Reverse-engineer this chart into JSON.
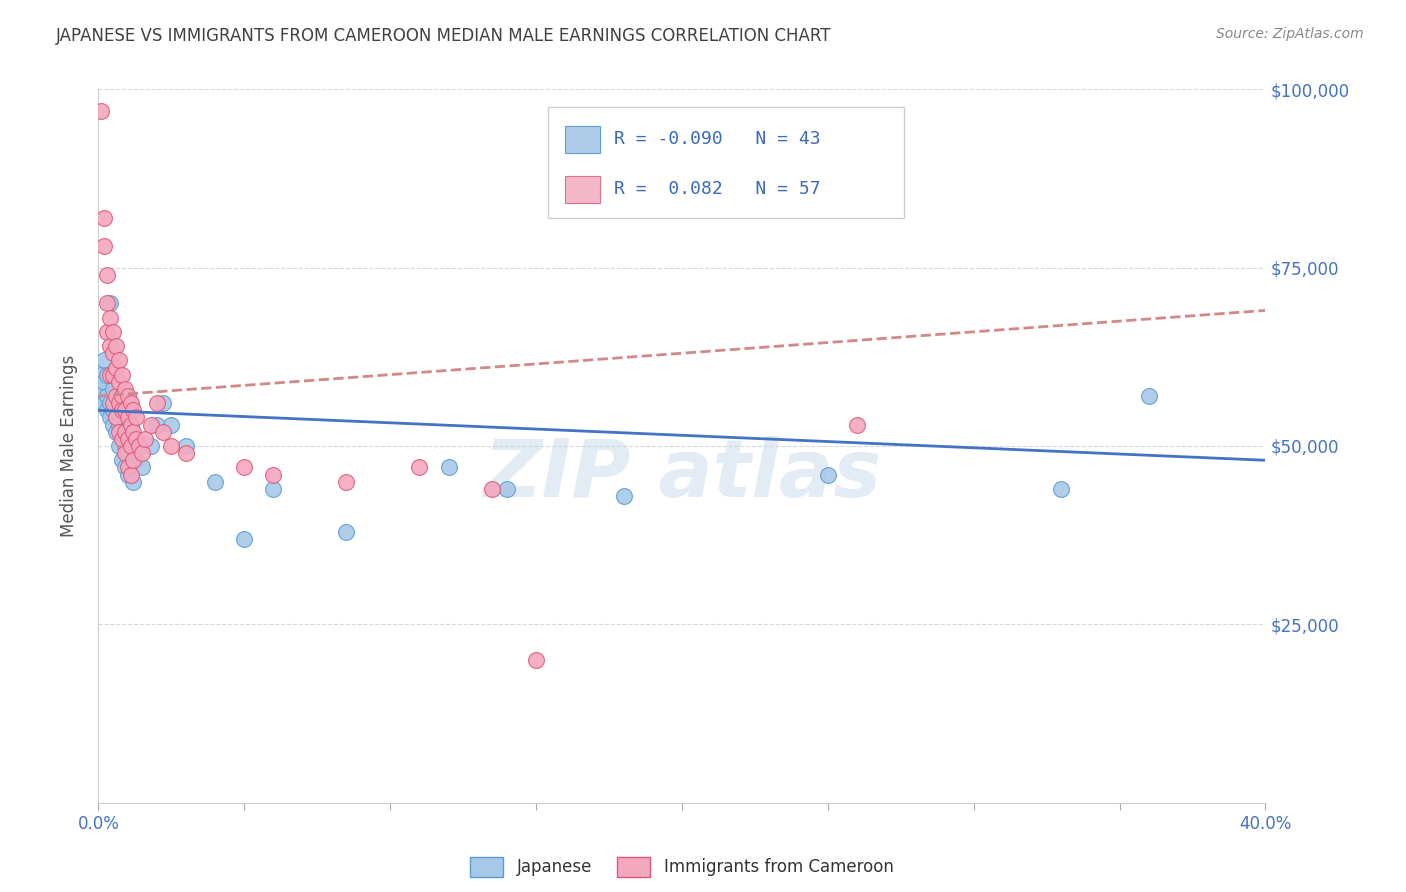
{
  "title": "JAPANESE VS IMMIGRANTS FROM CAMEROON MEDIAN MALE EARNINGS CORRELATION CHART",
  "source_text": "Source: ZipAtlas.com",
  "ylabel": "Median Male Earnings",
  "xlim": [
    0.0,
    0.4
  ],
  "ylim": [
    0,
    100000
  ],
  "yticks": [
    0,
    25000,
    50000,
    75000,
    100000
  ],
  "ytick_labels_right": [
    "",
    "$25,000",
    "$50,000",
    "$75,000",
    "$100,000"
  ],
  "xticks": [
    0.0,
    0.05,
    0.1,
    0.15,
    0.2,
    0.25,
    0.3,
    0.35,
    0.4
  ],
  "xtick_labels": [
    "0.0%",
    "",
    "",
    "",
    "",
    "",
    "",
    "",
    "40.0%"
  ],
  "legend_entries": [
    {
      "label": "R = -0.090   N = 43",
      "color": "#aecce8",
      "edge_color": "#5b9bd5"
    },
    {
      "label": "R =  0.082   N = 57",
      "color": "#f4b8c8",
      "edge_color": "#e07090"
    }
  ],
  "series": [
    {
      "name": "Japanese",
      "color": "#a8c8e8",
      "edge_color": "#5b9bd5",
      "points": [
        [
          0.001,
          57000
        ],
        [
          0.001,
          58000
        ],
        [
          0.001,
          60000
        ],
        [
          0.002,
          56000
        ],
        [
          0.002,
          59000
        ],
        [
          0.002,
          62000
        ],
        [
          0.003,
          55000
        ],
        [
          0.003,
          57000
        ],
        [
          0.003,
          60000
        ],
        [
          0.004,
          54000
        ],
        [
          0.004,
          56000
        ],
        [
          0.004,
          70000
        ],
        [
          0.005,
          53000
        ],
        [
          0.005,
          55000
        ],
        [
          0.005,
          58000
        ],
        [
          0.006,
          52000
        ],
        [
          0.006,
          54000
        ],
        [
          0.007,
          50000
        ],
        [
          0.007,
          53000
        ],
        [
          0.008,
          48000
        ],
        [
          0.008,
          52000
        ],
        [
          0.009,
          47000
        ],
        [
          0.009,
          50000
        ],
        [
          0.01,
          46000
        ],
        [
          0.01,
          49000
        ],
        [
          0.012,
          45000
        ],
        [
          0.013,
          48000
        ],
        [
          0.015,
          47000
        ],
        [
          0.018,
          50000
        ],
        [
          0.02,
          53000
        ],
        [
          0.022,
          56000
        ],
        [
          0.025,
          53000
        ],
        [
          0.03,
          50000
        ],
        [
          0.04,
          45000
        ],
        [
          0.05,
          37000
        ],
        [
          0.06,
          44000
        ],
        [
          0.085,
          38000
        ],
        [
          0.12,
          47000
        ],
        [
          0.14,
          44000
        ],
        [
          0.18,
          43000
        ],
        [
          0.25,
          46000
        ],
        [
          0.33,
          44000
        ],
        [
          0.36,
          57000
        ]
      ],
      "trend_color": "#4472c4",
      "trend_linestyle": "-",
      "trend_x0": 0.0,
      "trend_y0": 55000,
      "trend_x1": 0.4,
      "trend_y1": 48000
    },
    {
      "name": "Immigrants from Cameroon",
      "color": "#f4a8c0",
      "edge_color": "#e05878",
      "points": [
        [
          0.001,
          97000
        ],
        [
          0.002,
          82000
        ],
        [
          0.002,
          78000
        ],
        [
          0.003,
          74000
        ],
        [
          0.003,
          70000
        ],
        [
          0.003,
          66000
        ],
        [
          0.004,
          68000
        ],
        [
          0.004,
          64000
        ],
        [
          0.004,
          60000
        ],
        [
          0.005,
          66000
        ],
        [
          0.005,
          63000
        ],
        [
          0.005,
          60000
        ],
        [
          0.005,
          56000
        ],
        [
          0.006,
          64000
        ],
        [
          0.006,
          61000
        ],
        [
          0.006,
          57000
        ],
        [
          0.006,
          54000
        ],
        [
          0.007,
          62000
        ],
        [
          0.007,
          59000
        ],
        [
          0.007,
          56000
        ],
        [
          0.007,
          52000
        ],
        [
          0.008,
          60000
        ],
        [
          0.008,
          57000
        ],
        [
          0.008,
          55000
        ],
        [
          0.008,
          51000
        ],
        [
          0.009,
          58000
        ],
        [
          0.009,
          55000
        ],
        [
          0.009,
          52000
        ],
        [
          0.009,
          49000
        ],
        [
          0.01,
          57000
        ],
        [
          0.01,
          54000
        ],
        [
          0.01,
          51000
        ],
        [
          0.01,
          47000
        ],
        [
          0.011,
          56000
        ],
        [
          0.011,
          53000
        ],
        [
          0.011,
          50000
        ],
        [
          0.011,
          46000
        ],
        [
          0.012,
          55000
        ],
        [
          0.012,
          52000
        ],
        [
          0.012,
          48000
        ],
        [
          0.013,
          54000
        ],
        [
          0.013,
          51000
        ],
        [
          0.014,
          50000
        ],
        [
          0.015,
          49000
        ],
        [
          0.016,
          51000
        ],
        [
          0.018,
          53000
        ],
        [
          0.02,
          56000
        ],
        [
          0.022,
          52000
        ],
        [
          0.025,
          50000
        ],
        [
          0.03,
          49000
        ],
        [
          0.05,
          47000
        ],
        [
          0.06,
          46000
        ],
        [
          0.085,
          45000
        ],
        [
          0.11,
          47000
        ],
        [
          0.135,
          44000
        ],
        [
          0.15,
          20000
        ],
        [
          0.26,
          53000
        ]
      ],
      "trend_color": "#d08888",
      "trend_linestyle": "--",
      "trend_x0": 0.0,
      "trend_y0": 57000,
      "trend_x1": 0.4,
      "trend_y1": 69000
    }
  ],
  "background_color": "#ffffff",
  "grid_color": "#d8d8d8",
  "title_color": "#404040",
  "axis_label_color": "#4472c4",
  "ylabel_color": "#555555",
  "legend_bottom": [
    "Japanese",
    "Immigrants from Cameroon"
  ],
  "legend_bottom_colors": [
    "#a8c8e8",
    "#f4a8c0"
  ],
  "legend_bottom_edge": [
    "#5b9bd5",
    "#e05878"
  ]
}
